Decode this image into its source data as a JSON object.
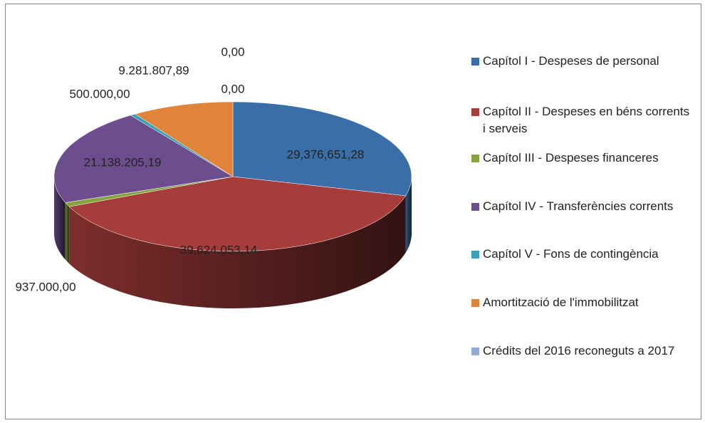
{
  "chart_data": {
    "type": "pie3d",
    "categories": [
      "Capítol I - Despeses de personal",
      "Capítol II - Despeses en béns corrents i serveis",
      "Capítol III - Despeses financeres",
      "Capítol IV - Transferències corrents",
      "Capítol V - Fons de contingència",
      "Amortització de l'immobilitzat",
      "Crédits del 2016 reconeguts a 2017",
      null
    ],
    "values": [
      29376651.28,
      39624053.14,
      937000,
      21138205.19,
      500000,
      9281807.89,
      0,
      0
    ],
    "value_labels": [
      "29,376,651,28",
      "39.624.053,14",
      "937.000,00",
      "21.138.205,19",
      "500.000,00",
      "9.281.807,89",
      "0,00",
      "0,00"
    ],
    "colors": [
      "#3a6ea8",
      "#a63d3b",
      "#86a43c",
      "#6c4e8e",
      "#3aa0b8",
      "#e0843a",
      "#93acd4"
    ],
    "legend": "right"
  }
}
